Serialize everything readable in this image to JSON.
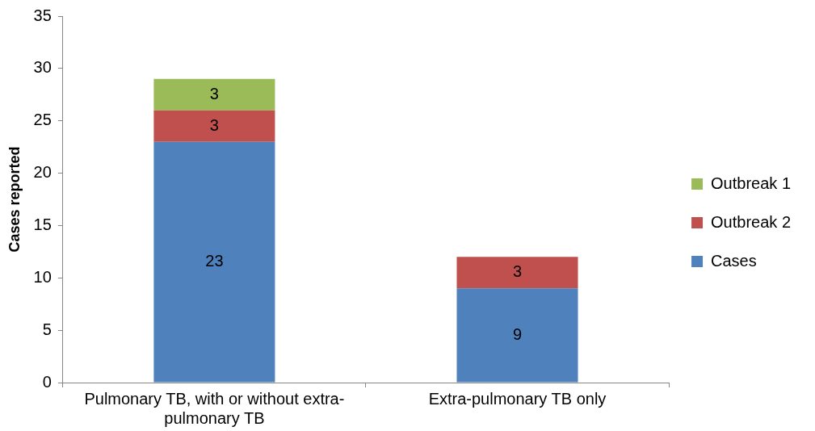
{
  "chart_data": {
    "type": "bar",
    "ylabel": "Cases reported",
    "categories": [
      "Pulmonary TB, with or without extra-pulmonary TB",
      "Extra-pulmonary TB only"
    ],
    "series": [
      {
        "name": "Cases",
        "color": "#4f81bd",
        "values": [
          23,
          9
        ]
      },
      {
        "name": "Outbreak 2",
        "color": "#c0504d",
        "values": [
          3,
          3
        ]
      },
      {
        "name": "Outbreak 1",
        "color": "#9bbb59",
        "values": [
          3,
          null
        ]
      }
    ],
    "stacked": true,
    "ylim": [
      0,
      35
    ],
    "yticks": [
      0,
      5,
      10,
      15,
      20,
      25,
      30,
      35
    ],
    "grid": false,
    "legend": "right",
    "data_labels": true
  }
}
